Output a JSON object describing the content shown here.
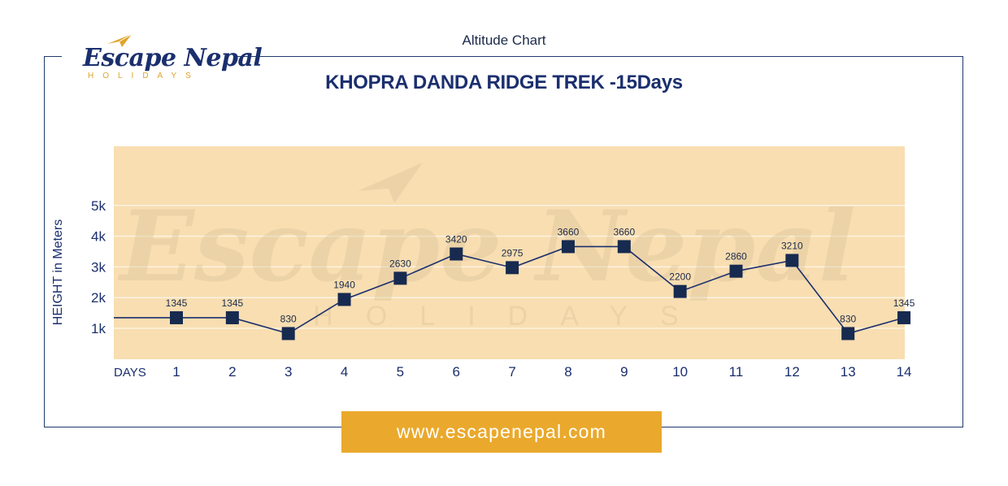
{
  "header": {
    "label": "Altitude Chart"
  },
  "logo": {
    "name": "Escape Nepal",
    "tagline": "HOLIDAYS"
  },
  "footer": {
    "url": "www.escapenepal.com"
  },
  "colors": {
    "navy": "#1b2f6e",
    "gold": "#eaa92c",
    "plot_bg": "#f8deb1",
    "grid": "#fdf3e2",
    "marker": "#172a4f"
  },
  "chart_data": {
    "type": "line",
    "title": "KHOPRA DANDA RIDGE TREK -15Days",
    "xlabel": "DAYS",
    "ylabel": "HEIGHT in Meters",
    "categories": [
      "1",
      "2",
      "3",
      "4",
      "5",
      "6",
      "7",
      "8",
      "9",
      "10",
      "11",
      "12",
      "13",
      "14"
    ],
    "values": [
      1345,
      1345,
      830,
      1940,
      2630,
      3420,
      2975,
      3660,
      3660,
      2200,
      2860,
      3210,
      830,
      1345
    ],
    "data_labels": [
      "1345",
      "1345",
      "830",
      "1940",
      "2630",
      "3420",
      "2975",
      "3660",
      "3660",
      "2200",
      "2860",
      "3210",
      "830",
      "1345"
    ],
    "y_ticks": [
      1000,
      2000,
      3000,
      4000,
      5000
    ],
    "y_tick_labels": [
      "1k",
      "2k",
      "3k",
      "4k",
      "5k"
    ],
    "ylim": [
      0,
      6000
    ],
    "grid": true,
    "legend": "none",
    "marker": "square"
  }
}
